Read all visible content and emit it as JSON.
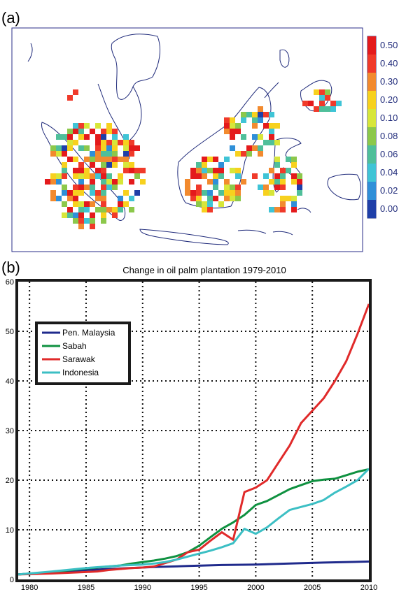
{
  "panel_a": {
    "label": "(a)",
    "colorbar": {
      "labels": [
        "0.50",
        "0.40",
        "0.30",
        "0.20",
        "0.10",
        "0.08",
        "0.06",
        "0.04",
        "0.02",
        "0.00"
      ],
      "colors": [
        "#e41a1c",
        "#f03a2a",
        "#f28a2e",
        "#f7d11e",
        "#d7e63a",
        "#8cc84b",
        "#4fbf9a",
        "#3fc4d6",
        "#2f8fd8",
        "#1f3fa8"
      ]
    }
  },
  "panel_b": {
    "label": "(b)"
  },
  "chart_data": {
    "type": "line",
    "title": "Change in oil palm plantation 1979-2010",
    "xlabel": "",
    "ylabel": "",
    "xlim": [
      1979,
      2010
    ],
    "ylim": [
      0,
      60
    ],
    "xticks": [
      1980,
      1985,
      1990,
      1995,
      2000,
      2005,
      2010
    ],
    "yticks": [
      0,
      10,
      20,
      30,
      40,
      50,
      60
    ],
    "grid": true,
    "legend_position": "top-left",
    "series": [
      {
        "name": "Pen. Malaysia",
        "color": "#1f2a8c",
        "x": [
          1979,
          1982,
          1985,
          1988,
          1991,
          1994,
          1997,
          2000,
          2003,
          2006,
          2010
        ],
        "y": [
          1,
          1.5,
          1.9,
          2.2,
          2.5,
          2.7,
          2.9,
          3.0,
          3.2,
          3.4,
          3.6
        ]
      },
      {
        "name": "Sabah",
        "color": "#0f9140",
        "x": [
          1979,
          1982,
          1985,
          1988,
          1989,
          1990,
          1991,
          1992,
          1993,
          1994,
          1995,
          1996,
          1997,
          1998,
          1999,
          2000,
          2001,
          2002,
          2003,
          2004,
          2005,
          2006,
          2007,
          2008,
          2009,
          2010
        ],
        "y": [
          1,
          1.5,
          2.2,
          2.8,
          3.2,
          3.5,
          3.8,
          4.2,
          4.7,
          5.5,
          6.8,
          8.5,
          10.2,
          11.5,
          13.0,
          15.0,
          15.8,
          17.0,
          18.2,
          19.0,
          19.8,
          20.1,
          20.3,
          21.0,
          21.7,
          22.2
        ]
      },
      {
        "name": "Sarawak",
        "color": "#e02a2a",
        "x": [
          1979,
          1982,
          1985,
          1986,
          1987,
          1988,
          1989,
          1990,
          1991,
          1992,
          1993,
          1994,
          1995,
          1996,
          1997,
          1998,
          1999,
          2000,
          2001,
          2002,
          2003,
          2004,
          2005,
          2006,
          2007,
          2008,
          2009,
          2010
        ],
        "y": [
          1,
          1.2,
          1.5,
          1.6,
          1.9,
          2.1,
          2.3,
          2.4,
          2.6,
          3.3,
          4.0,
          5.5,
          6.0,
          7.8,
          9.5,
          8.0,
          17.6,
          18.5,
          20.0,
          23.5,
          27.0,
          31.5,
          34.0,
          36.5,
          40.0,
          44.0,
          49.5,
          55.5
        ]
      },
      {
        "name": "Indonesia",
        "color": "#3cbfc4",
        "x": [
          1979,
          1982,
          1985,
          1988,
          1990,
          1991,
          1992,
          1993,
          1994,
          1995,
          1996,
          1997,
          1998,
          1999,
          2000,
          2001,
          2002,
          2003,
          2004,
          2005,
          2006,
          2007,
          2008,
          2009,
          2010
        ],
        "y": [
          1,
          1.6,
          2.3,
          2.8,
          3.0,
          3.2,
          3.5,
          4.0,
          4.6,
          5.2,
          5.8,
          6.5,
          7.3,
          10.2,
          9.2,
          10.5,
          12.3,
          14.0,
          14.6,
          15.2,
          16.0,
          17.5,
          18.7,
          20.0,
          22.3
        ]
      }
    ]
  }
}
